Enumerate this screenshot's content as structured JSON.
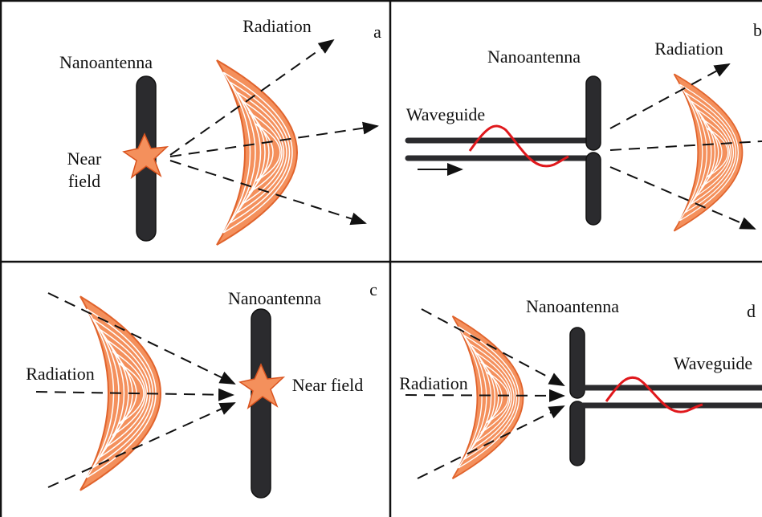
{
  "panels": [
    {
      "label": "a",
      "radiation": "Radiation",
      "nanoantenna": "Nanoantenna",
      "near_field": [
        "Near",
        "field"
      ]
    },
    {
      "label": "b",
      "nanoantenna": "Nanoantenna",
      "radiation": "Radiation",
      "waveguide": "Waveguide"
    },
    {
      "label": "c",
      "nanoantenna": "Nanoantenna",
      "radiation": "Radiation",
      "near_field": "Near field"
    },
    {
      "label": "d",
      "nanoantenna": "Nanoantenna",
      "radiation": "Radiation",
      "waveguide": "Waveguide"
    }
  ]
}
